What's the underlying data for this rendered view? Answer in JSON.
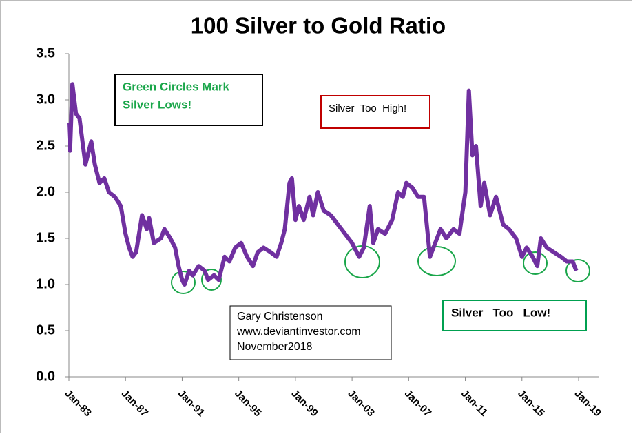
{
  "chart_data": {
    "type": "line",
    "title": "100 Silver to Gold Ratio",
    "x": [
      "1983-01",
      "1983-02",
      "1983-04",
      "1983-07",
      "1983-10",
      "1984-03",
      "1984-08",
      "1984-11",
      "1985-03",
      "1985-07",
      "1985-11",
      "1986-04",
      "1986-09",
      "1987-01",
      "1987-04",
      "1987-07",
      "1987-10",
      "1988-03",
      "1988-07",
      "1988-09",
      "1989-01",
      "1989-07",
      "1989-10",
      "1990-03",
      "1990-07",
      "1990-10",
      "1991-01",
      "1991-03",
      "1991-07",
      "1991-10",
      "1992-03",
      "1992-08",
      "1992-11",
      "1993-04",
      "1993-08",
      "1994-01",
      "1994-05",
      "1994-10",
      "1995-03",
      "1995-08",
      "1996-01",
      "1996-05",
      "1996-10",
      "1997-04",
      "1997-09",
      "1998-01",
      "1998-04",
      "1998-08",
      "1998-10",
      "1999-01",
      "1999-04",
      "1999-08",
      "2000-01",
      "2000-04",
      "2000-08",
      "2001-01",
      "2001-07",
      "2002-01",
      "2002-07",
      "2003-01",
      "2003-07",
      "2003-11",
      "2004-04",
      "2004-07",
      "2004-11",
      "2005-05",
      "2005-11",
      "2006-04",
      "2006-08",
      "2006-11",
      "2007-04",
      "2007-09",
      "2008-02",
      "2008-07",
      "2008-10",
      "2009-04",
      "2009-09",
      "2010-03",
      "2010-08",
      "2011-01",
      "2011-04",
      "2011-07",
      "2011-10",
      "2012-02",
      "2012-05",
      "2012-10",
      "2013-03",
      "2013-09",
      "2014-02",
      "2014-08",
      "2015-01",
      "2015-05",
      "2015-10",
      "2016-02",
      "2016-05",
      "2016-10",
      "2017-04",
      "2017-10",
      "2018-03",
      "2018-08",
      "2018-11"
    ],
    "series": [
      {
        "color": "#7030a0",
        "values": [
          2.75,
          2.45,
          3.17,
          2.85,
          2.8,
          2.3,
          2.55,
          2.3,
          2.1,
          2.15,
          2.0,
          1.95,
          1.85,
          1.55,
          1.4,
          1.3,
          1.35,
          1.75,
          1.6,
          1.72,
          1.45,
          1.5,
          1.6,
          1.5,
          1.4,
          1.2,
          1.05,
          1.0,
          1.15,
          1.1,
          1.2,
          1.15,
          1.05,
          1.1,
          1.05,
          1.3,
          1.25,
          1.4,
          1.45,
          1.3,
          1.2,
          1.35,
          1.4,
          1.35,
          1.3,
          1.45,
          1.6,
          2.1,
          2.15,
          1.7,
          1.85,
          1.7,
          1.95,
          1.75,
          2.0,
          1.8,
          1.75,
          1.65,
          1.55,
          1.45,
          1.3,
          1.4,
          1.85,
          1.45,
          1.6,
          1.55,
          1.7,
          2.0,
          1.95,
          2.1,
          2.05,
          1.95,
          1.95,
          1.3,
          1.4,
          1.6,
          1.5,
          1.6,
          1.55,
          2.0,
          3.1,
          2.4,
          2.5,
          1.85,
          2.1,
          1.75,
          1.95,
          1.65,
          1.6,
          1.5,
          1.3,
          1.4,
          1.3,
          1.2,
          1.5,
          1.4,
          1.35,
          1.3,
          1.25,
          1.25,
          1.15
        ]
      }
    ],
    "xlim": [
      "1983-01",
      "2019-01"
    ],
    "xticks": [
      {
        "value": "1983-01",
        "label": "Jan-83"
      },
      {
        "value": "1987-01",
        "label": "Jan-87"
      },
      {
        "value": "1991-01",
        "label": "Jan-91"
      },
      {
        "value": "1995-01",
        "label": "Jan-95"
      },
      {
        "value": "1999-01",
        "label": "Jan-99"
      },
      {
        "value": "2003-01",
        "label": "Jan-03"
      },
      {
        "value": "2007-01",
        "label": "Jan-07"
      },
      {
        "value": "2011-01",
        "label": "Jan-11"
      },
      {
        "value": "2015-01",
        "label": "Jan-15"
      },
      {
        "value": "2019-01",
        "label": "Jan-19"
      }
    ],
    "ylim": [
      0,
      3.5
    ],
    "yticks": [
      {
        "value": 0,
        "label": "0.0"
      },
      0.5,
      {
        "value": 1,
        "label": "1.0"
      },
      1.5,
      {
        "value": 2,
        "label": "2.0"
      },
      2.5,
      {
        "value": 3,
        "label": "3.0"
      },
      3.5
    ],
    "annotations": [
      {
        "lines": [
          "Green Circles Mark",
          "Silver Lows!"
        ]
      },
      {
        "lines": [
          "Silver  Too  High!"
        ]
      },
      {
        "lines": [
          "Gary Christenson",
          "www.deviantinvestor.com",
          "November2018"
        ]
      },
      {
        "lines": [
          "Silver   Too   Low!"
        ]
      }
    ]
  }
}
